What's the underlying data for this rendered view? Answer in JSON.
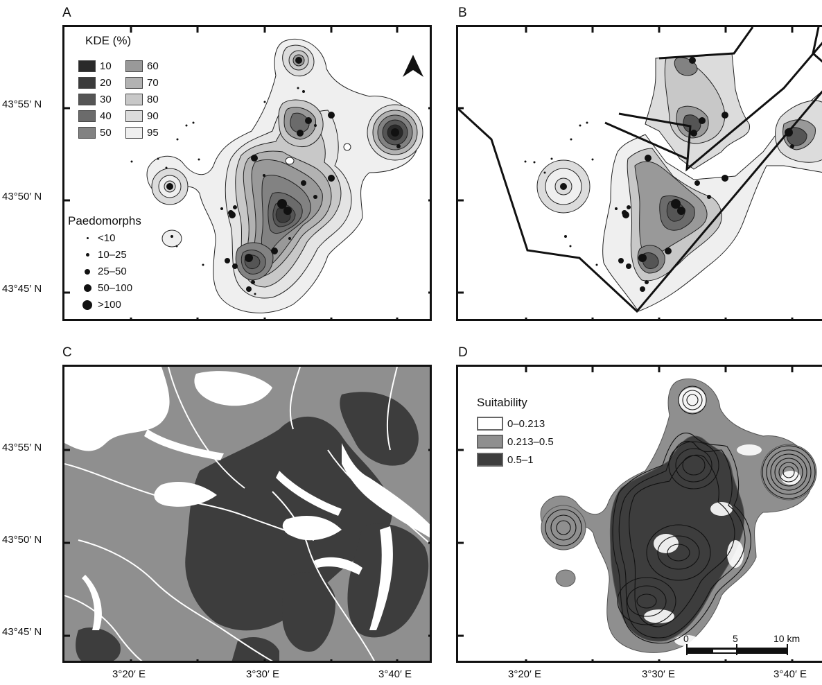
{
  "panels": {
    "a": "A",
    "b": "B",
    "c": "C",
    "d": "D"
  },
  "lat_labels": [
    "43°55′ N",
    "43°50′ N",
    "43°45′ N"
  ],
  "lon_labels": [
    "3°20′ E",
    "3°30′ E",
    "3°40′ E"
  ],
  "kde_legend": {
    "title": "KDE (%)",
    "items": [
      {
        "label": "10",
        "color": "#2a2a2a"
      },
      {
        "label": "20",
        "color": "#3b3b3b"
      },
      {
        "label": "30",
        "color": "#555555"
      },
      {
        "label": "40",
        "color": "#6b6b6b"
      },
      {
        "label": "50",
        "color": "#828282"
      },
      {
        "label": "60",
        "color": "#999999"
      },
      {
        "label": "70",
        "color": "#b2b2b2"
      },
      {
        "label": "80",
        "color": "#c8c8c8"
      },
      {
        "label": "90",
        "color": "#dcdcdc"
      },
      {
        "label": "95",
        "color": "#efefef"
      }
    ]
  },
  "paedomorph_legend": {
    "title": "Paedomorphs",
    "items": [
      "<10",
      "10–25",
      "25–50",
      "50–100",
      ">100"
    ]
  },
  "suitability_legend": {
    "title": "Suitability",
    "items": [
      {
        "label": "0–0.213",
        "color": "#ffffff"
      },
      {
        "label": "0.213–0.5",
        "color": "#8f8f8f"
      },
      {
        "label": "0.5–1",
        "color": "#3d3d3d"
      }
    ]
  },
  "scale_bar": {
    "labels": [
      "0",
      "5",
      "10 km"
    ]
  },
  "icons": {
    "north_arrow": "north-arrow-icon"
  }
}
